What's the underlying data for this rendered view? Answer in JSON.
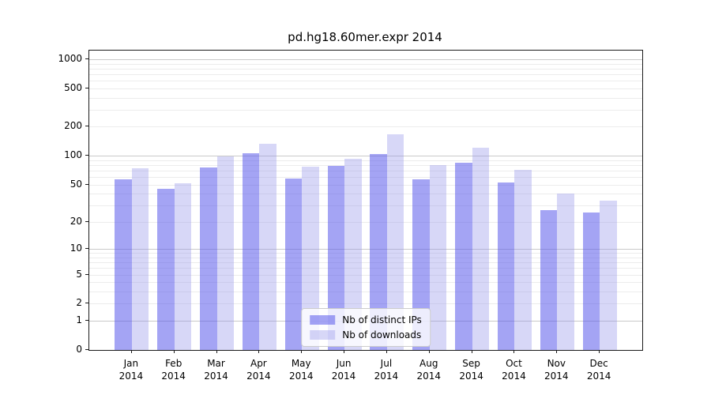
{
  "title": "pd.hg18.60mer.expr 2014",
  "chart_data": {
    "type": "bar",
    "title": "pd.hg18.60mer.expr 2014",
    "categories": [
      "Jan 2014",
      "Feb 2014",
      "Mar 2014",
      "Apr 2014",
      "May 2014",
      "Jun 2014",
      "Jul 2014",
      "Aug 2014",
      "Sep 2014",
      "Oct 2014",
      "Nov 2014",
      "Dec 2014"
    ],
    "series": [
      {
        "name": "Nb of distinct IPs",
        "color": "rgba(90,90,235,0.55)",
        "values": [
          57,
          45,
          75,
          106,
          58,
          78,
          104,
          57,
          85,
          53,
          27,
          25
        ]
      },
      {
        "name": "Nb of downloads",
        "color": "rgba(150,150,235,0.38)",
        "values": [
          74,
          52,
          99,
          133,
          77,
          93,
          167,
          80,
          121,
          71,
          40,
          34
        ]
      }
    ],
    "yscale": "log1p",
    "ylim": [
      0,
      1229
    ],
    "y_ticks": [
      1000,
      500,
      200,
      100,
      50,
      20,
      10,
      5,
      2,
      1,
      0
    ],
    "y_major_gridlines": [
      1,
      10,
      100,
      1000
    ],
    "y_minor_gridline_mantissas": [
      2,
      3,
      4,
      5,
      6,
      7,
      8,
      9
    ],
    "grid": true,
    "legend_position": "lower center",
    "colors": {
      "bar_distinct_ips": "rgba(90,90,235,0.55)",
      "bar_downloads": "rgba(150,150,235,0.38)",
      "grid_major": "#c9c9c9",
      "grid_minor": "#ececec",
      "frame": "#1a1a1a"
    }
  }
}
